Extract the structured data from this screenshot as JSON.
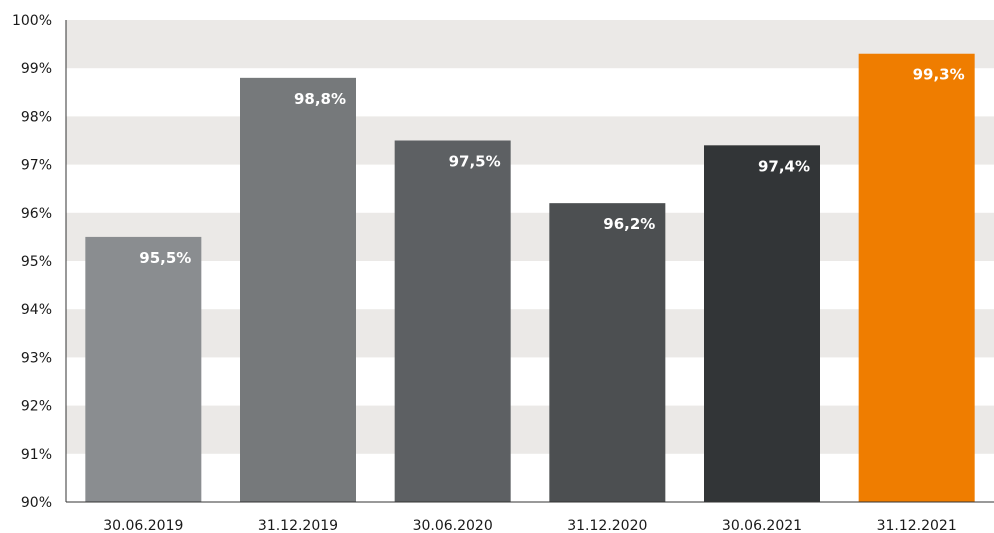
{
  "chart_data": {
    "type": "bar",
    "title": "",
    "xlabel": "",
    "ylabel": "",
    "categories": [
      "30.06.2019",
      "31.12.2019",
      "30.06.2020",
      "31.12.2020",
      "30.06.2021",
      "31.12.2021"
    ],
    "values": [
      95.5,
      98.8,
      97.5,
      96.2,
      97.4,
      99.3
    ],
    "value_labels": [
      "95,5%",
      "98,8%",
      "97,5%",
      "96,2%",
      "97,4%",
      "99,3%"
    ],
    "bar_colors": [
      "#8a8d90",
      "#76797b",
      "#5d6063",
      "#4c4f51",
      "#323537",
      "#ef7d00"
    ],
    "ylim": [
      90,
      100
    ],
    "yticks": [
      90,
      91,
      92,
      93,
      94,
      95,
      96,
      97,
      98,
      99,
      100
    ],
    "ytick_labels": [
      "90%",
      "91%",
      "92%",
      "93%",
      "94%",
      "95%",
      "96%",
      "97%",
      "98%",
      "99%",
      "100%"
    ],
    "band_color": "#ebe9e7",
    "grid": false,
    "legend": "none"
  }
}
